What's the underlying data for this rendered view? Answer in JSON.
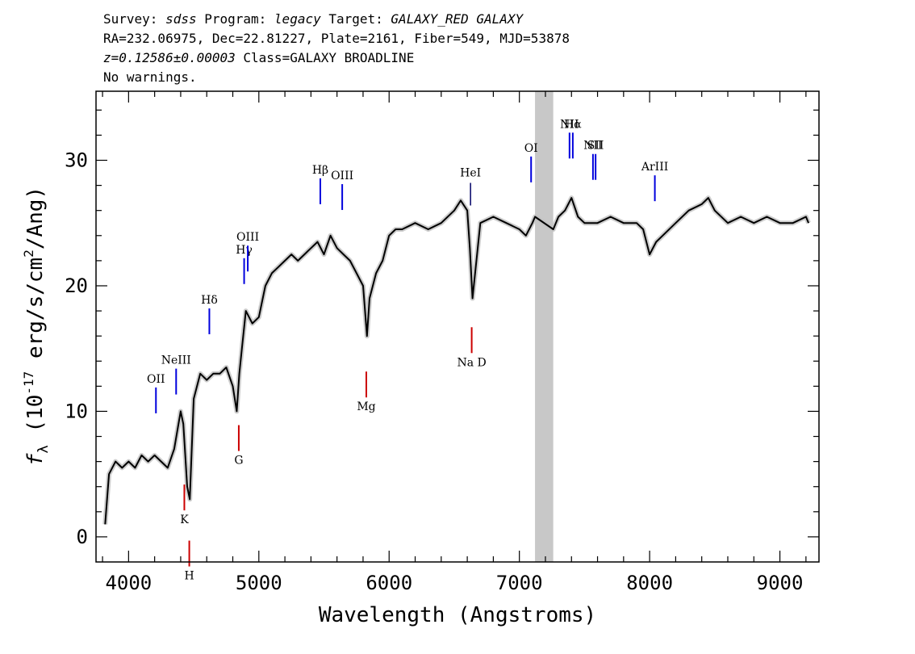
{
  "header": {
    "line1": {
      "survey_label": "Survey: ",
      "survey": "sdss",
      "program_label": " Program: ",
      "program": "legacy",
      "target_label": " Target: ",
      "target": "GALAXY_RED GALAXY"
    },
    "line2": "RA=232.06975, Dec=22.81227, Plate=2161, Fiber=549, MJD=53878",
    "line3": {
      "z": "z=0.12586±0.00003",
      "rest": " Class=GALAXY BROADLINE"
    },
    "line4": "No warnings."
  },
  "colors": {
    "spectrum": "#000000",
    "error_band": "#c0c0c0",
    "emission_line": "#0000dd",
    "absorption_line": "#cc0000",
    "masked_region": "#c8c8c8"
  },
  "chart_data": {
    "type": "line",
    "title": "",
    "xlabel": "Wavelength (Angstroms)",
    "ylabel": "f_λ (10^-17 erg/s/cm^2/Ang)",
    "xlim": [
      3750,
      9300
    ],
    "ylim": [
      -2,
      35.5
    ],
    "xticks": [
      4000,
      5000,
      6000,
      7000,
      8000,
      9000
    ],
    "yticks": [
      0,
      10,
      20,
      30
    ],
    "masked_region": [
      7120,
      7260
    ],
    "series": [
      {
        "x": [
          3820,
          3850,
          3900,
          3950,
          4000,
          4050,
          4100,
          4150,
          4200,
          4250,
          4300,
          4350,
          4400,
          4420,
          4450,
          4470,
          4500,
          4550,
          4600,
          4650,
          4700,
          4750,
          4800,
          4830,
          4850,
          4870,
          4900,
          4950,
          5000,
          5050,
          5100,
          5150,
          5200,
          5250,
          5300,
          5350,
          5400,
          5450,
          5500,
          5550,
          5600,
          5650,
          5700,
          5750,
          5800,
          5830,
          5850,
          5900,
          5950,
          6000,
          6050,
          6100,
          6200,
          6300,
          6400,
          6500,
          6550,
          6600,
          6620,
          6640,
          6700,
          6800,
          6900,
          7000,
          7050,
          7100,
          7120,
          7260,
          7300,
          7350,
          7400,
          7450,
          7500,
          7600,
          7700,
          7800,
          7900,
          7950,
          8000,
          8050,
          8100,
          8200,
          8300,
          8400,
          8450,
          8500,
          8600,
          8700,
          8800,
          8900,
          9000,
          9100,
          9200,
          9220
        ],
        "y": [
          1,
          5,
          6,
          5.5,
          6,
          5.5,
          6.5,
          6,
          6.5,
          6,
          5.5,
          7,
          10,
          9,
          4,
          3,
          11,
          13,
          12.5,
          13,
          13,
          13.5,
          12,
          10,
          13,
          15,
          18,
          17,
          17.5,
          20,
          21,
          21.5,
          22,
          22.5,
          22,
          22.5,
          23,
          23.5,
          22.5,
          24,
          23,
          22.5,
          22,
          21,
          20,
          16,
          19,
          21,
          22,
          24,
          24.5,
          24.5,
          25,
          24.5,
          25,
          26,
          26.8,
          26,
          23,
          19,
          25,
          25.5,
          25,
          24.5,
          24,
          25,
          25.5,
          24.5,
          25.5,
          26,
          27,
          25.5,
          25,
          25,
          25.5,
          25,
          25,
          24.5,
          22.5,
          23.5,
          24,
          25,
          26,
          26.5,
          27,
          26,
          25,
          25.5,
          25,
          25.5,
          25,
          25,
          25.5,
          25
        ]
      }
    ],
    "emission_lines": [
      {
        "label": "OII",
        "x": 4210
      },
      {
        "label": "NeIII",
        "x": 4365
      },
      {
        "label": "Hδ",
        "x": 4620
      },
      {
        "label": "Hγ",
        "x": 4887
      },
      {
        "label": "OIII",
        "x": 4915
      },
      {
        "label": "Hβ",
        "x": 5472
      },
      {
        "label": "OIII",
        "x": 5640
      },
      {
        "label": "OI",
        "x": 7090
      },
      {
        "label": "NII",
        "x": 7385
      },
      {
        "label": "Hα",
        "x": 7410
      },
      {
        "label": "NII",
        "x": 7565
      },
      {
        "label": "SII",
        "x": 7585
      },
      {
        "label": "ArIII",
        "x": 8040
      }
    ],
    "absorption_lines": [
      {
        "label": "K",
        "x": 4428
      },
      {
        "label": "H",
        "x": 4466
      },
      {
        "label": "G",
        "x": 4846
      },
      {
        "label": "Mg",
        "x": 5825
      },
      {
        "label": "Na D",
        "x": 6634
      },
      {
        "label": "HeI",
        "x": 6625
      }
    ]
  }
}
